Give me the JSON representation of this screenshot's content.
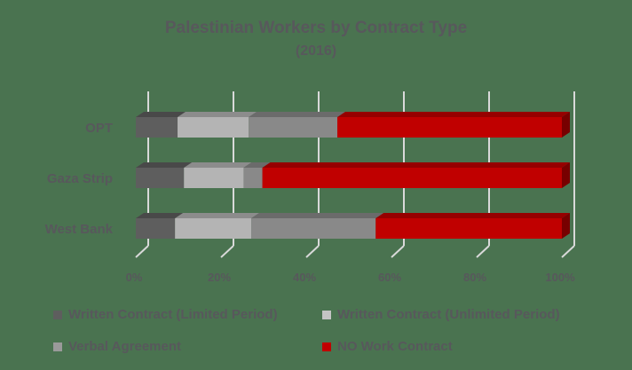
{
  "chart": {
    "title": "Palestinian Workers by Contract Type",
    "subtitle": "(2016)"
  },
  "chart_data": {
    "type": "bar",
    "orientation": "horizontal",
    "stacked": "100%",
    "style": "3d",
    "title": "Palestinian Workers by Contract Type",
    "subtitle": "(2016)",
    "xlabel": "",
    "ylabel": "",
    "xlim": [
      0,
      100
    ],
    "x_ticks": [
      "0%",
      "20%",
      "40%",
      "60%",
      "80%",
      "100%"
    ],
    "grid": true,
    "legend_position": "bottom",
    "categories": [
      "OPT",
      "Gaza Strip",
      "West Bank"
    ],
    "series": [
      {
        "name": "Written Contract (Limited Period)",
        "color": "#5e5e5e",
        "values": [
          9.8,
          11.3,
          9.2
        ]
      },
      {
        "name": "Written Contract (Unlimited Period)",
        "color": "#b4b4b4",
        "values": [
          16.7,
          14.0,
          17.9
        ]
      },
      {
        "name": "Verbal Agreement",
        "color": "#898989",
        "values": [
          20.8,
          4.4,
          29.2
        ]
      },
      {
        "name": "NO Work Contract",
        "color": "#c00000",
        "values": [
          52.7,
          70.3,
          43.7
        ]
      }
    ]
  },
  "legend": {
    "items": [
      {
        "label": "Written Contract (Limited Period)",
        "color": "#5e5e5e"
      },
      {
        "label": "Written Contract (Unlimited Period)",
        "color": "#c4c4c4"
      },
      {
        "label": "Verbal Agreement",
        "color": "#9a9a9a"
      },
      {
        "label": "NO Work Contract",
        "color": "#c00000"
      }
    ]
  }
}
